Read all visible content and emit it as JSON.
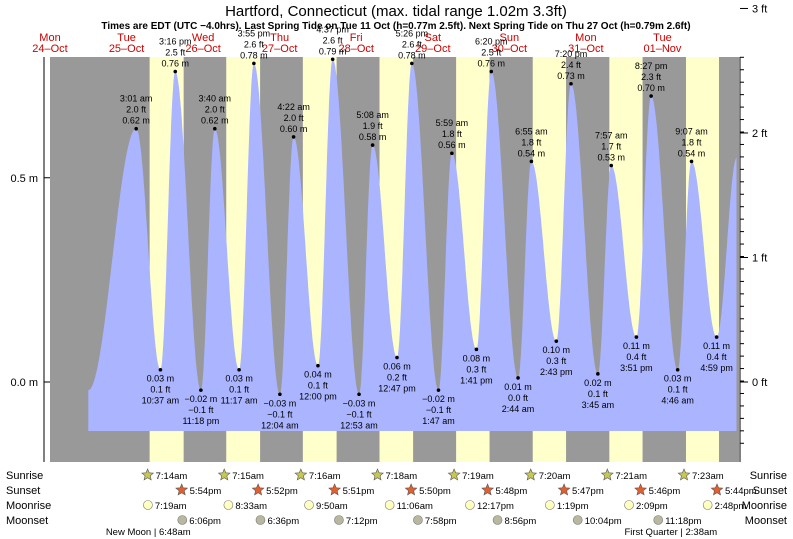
{
  "chart_data": {
    "type": "area",
    "title": "Hartford, Connecticut (max. tidal range 1.02m 3.3ft)",
    "subtitle": "Times are EDT (UTC −4.0hrs). Last Spring Tide on Tue 11 Oct (h=0.77m 2.5ft). Next Spring Tide on Thu 27 Oct (h=0.79m 2.6ft)",
    "days": [
      {
        "dow": "Mon",
        "date": "24–Oct"
      },
      {
        "dow": "Tue",
        "date": "25–Oct"
      },
      {
        "dow": "Wed",
        "date": "26–Oct"
      },
      {
        "dow": "Thu",
        "date": "27–Oct"
      },
      {
        "dow": "Fri",
        "date": "28–Oct"
      },
      {
        "dow": "Sat",
        "date": "29–Oct"
      },
      {
        "dow": "Sun",
        "date": "30–Oct"
      },
      {
        "dow": "Mon",
        "date": "31–Oct"
      },
      {
        "dow": "Tue",
        "date": "01–Nov"
      }
    ],
    "y_left_ticks": [
      {
        "v": 0.0,
        "label": "0.0 m"
      },
      {
        "v": 0.5,
        "label": "0.5 m"
      }
    ],
    "y_right_ticks": [
      {
        "v": 0.0,
        "label": "0 ft"
      },
      {
        "v": 0.3048,
        "label": "1 ft"
      },
      {
        "v": 0.6096,
        "label": "2 ft"
      },
      {
        "v": 0.9144,
        "label": "3 ft"
      }
    ],
    "ylim": [
      -0.15,
      0.93
    ],
    "x_range_days": [
      0,
      9
    ],
    "tides": [
      {
        "type": "high",
        "t": 1.1257,
        "time": "3:01 am",
        "ft": "2.0 ft",
        "m": "0.62 m",
        "v": 0.62
      },
      {
        "type": "low",
        "t": 1.4424,
        "time": "10:37 am",
        "ft": "0.1 ft",
        "m": "0.03 m",
        "v": 0.03
      },
      {
        "type": "high",
        "t": 1.6361,
        "time": "3:16 pm",
        "ft": "2.5 ft",
        "m": "0.76 m",
        "v": 0.76
      },
      {
        "type": "low",
        "t": 1.9708,
        "time": "11:18 pm",
        "ft": "−0.1 ft",
        "m": "−0.02 m",
        "v": -0.02
      },
      {
        "type": "high",
        "t": 2.1528,
        "time": "3:40 am",
        "ft": "2.0 ft",
        "m": "0.62 m",
        "v": 0.62
      },
      {
        "type": "low",
        "t": 2.4701,
        "time": "11:17 am",
        "ft": "0.1 ft",
        "m": "0.03 m",
        "v": 0.03
      },
      {
        "type": "high",
        "t": 2.6632,
        "time": "3:55 pm",
        "ft": "2.6 ft",
        "m": "0.78 m",
        "v": 0.78
      },
      {
        "type": "low",
        "t": 3.0028,
        "time": "12:04 am",
        "ft": "−0.1 ft",
        "m": "−0.03 m",
        "v": -0.03
      },
      {
        "type": "high",
        "t": 3.1819,
        "time": "4:22 am",
        "ft": "2.0 ft",
        "m": "0.60 m",
        "v": 0.6
      },
      {
        "type": "low",
        "t": 3.5,
        "time": "12:00 pm",
        "ft": "0.1 ft",
        "m": "0.04 m",
        "v": 0.04
      },
      {
        "type": "high",
        "t": 3.6924,
        "time": "4:37 pm",
        "ft": "2.6 ft",
        "m": "0.79 m",
        "v": 0.79
      },
      {
        "type": "low",
        "t": 4.0368,
        "time": "12:53 am",
        "ft": "−0.1 ft",
        "m": "−0.03 m",
        "v": -0.03
      },
      {
        "type": "high",
        "t": 4.2139,
        "time": "5:08 am",
        "ft": "1.9 ft",
        "m": "0.58 m",
        "v": 0.58
      },
      {
        "type": "low",
        "t": 4.5326,
        "time": "12:47 pm",
        "ft": "0.2 ft",
        "m": "0.06 m",
        "v": 0.06
      },
      {
        "type": "high",
        "t": 4.7264,
        "time": "5:26 pm",
        "ft": "2.6 ft",
        "m": "0.78 m",
        "v": 0.78
      },
      {
        "type": "low",
        "t": 5.0743,
        "time": "1:47 am",
        "ft": "−0.1 ft",
        "m": "−0.02 m",
        "v": -0.02
      },
      {
        "type": "high",
        "t": 5.2493,
        "time": "5:59 am",
        "ft": "1.8 ft",
        "m": "0.56 m",
        "v": 0.56
      },
      {
        "type": "low",
        "t": 5.5701,
        "time": "1:41 pm",
        "ft": "0.3 ft",
        "m": "0.08 m",
        "v": 0.08
      },
      {
        "type": "high",
        "t": 5.7639,
        "time": "6:20 pm",
        "ft": "2.5 ft",
        "m": "0.76 m",
        "v": 0.76
      },
      {
        "type": "low",
        "t": 6.1139,
        "time": "2:44 am",
        "ft": "0.0 ft",
        "m": "0.01 m",
        "v": 0.01
      },
      {
        "type": "high",
        "t": 6.2882,
        "time": "6:55 am",
        "ft": "1.8 ft",
        "m": "0.54 m",
        "v": 0.54
      },
      {
        "type": "low",
        "t": 6.6132,
        "time": "2:43 pm",
        "ft": "0.3 ft",
        "m": "0.10 m",
        "v": 0.1
      },
      {
        "type": "high",
        "t": 6.8056,
        "time": "7:20 pm",
        "ft": "2.4 ft",
        "m": "0.73 m",
        "v": 0.73
      },
      {
        "type": "low",
        "t": 7.1563,
        "time": "3:45 am",
        "ft": "0.1 ft",
        "m": "0.02 m",
        "v": 0.02
      },
      {
        "type": "high",
        "t": 7.3313,
        "time": "7:57 am",
        "ft": "1.7 ft",
        "m": "0.53 m",
        "v": 0.53
      },
      {
        "type": "low",
        "t": 7.66,
        "time": "3:51 pm",
        "ft": "0.4 ft",
        "m": "0.11 m",
        "v": 0.11
      },
      {
        "type": "high",
        "t": 7.8521,
        "time": "8:27 pm",
        "ft": "2.3 ft",
        "m": "0.70 m",
        "v": 0.7
      },
      {
        "type": "low",
        "t": 8.1986,
        "time": "4:46 am",
        "ft": "0.1 ft",
        "m": "0.03 m",
        "v": 0.03
      },
      {
        "type": "high",
        "t": 8.3799,
        "time": "9:07 am",
        "ft": "1.8 ft",
        "m": "0.54 m",
        "v": 0.54
      },
      {
        "type": "low",
        "t": 8.7076,
        "time": "4:59 pm",
        "ft": "0.4 ft",
        "m": "0.11 m",
        "v": 0.11
      }
    ],
    "sun": [
      {
        "rise_t": 1.3014,
        "rise": "7:14am",
        "set_t": 1.7458,
        "set": "5:54pm"
      },
      {
        "rise_t": 2.3021,
        "rise": "7:15am",
        "set_t": 2.7444,
        "set": "5:52pm"
      },
      {
        "rise_t": 3.3028,
        "rise": "7:16am",
        "set_t": 3.7438,
        "set": "5:51pm"
      },
      {
        "rise_t": 4.3042,
        "rise": "7:18am",
        "set_t": 4.7431,
        "set": "5:50pm"
      },
      {
        "rise_t": 5.3049,
        "rise": "7:19am",
        "set_t": 5.7417,
        "set": "5:48pm"
      },
      {
        "rise_t": 6.3056,
        "rise": "7:20am",
        "set_t": 6.741,
        "set": "5:47pm"
      },
      {
        "rise_t": 7.3063,
        "rise": "7:21am",
        "set_t": 7.7403,
        "set": "5:46pm"
      },
      {
        "rise_t": 8.3076,
        "rise": "7:23am",
        "set_t": 8.7389,
        "set": "5:44pm"
      }
    ],
    "moonrise": [
      {
        "t": 1.3049,
        "label": "7:19am"
      },
      {
        "t": 2.3563,
        "label": "8:33am"
      },
      {
        "t": 3.4097,
        "label": "9:50am"
      },
      {
        "t": 4.4625,
        "label": "11:06am"
      },
      {
        "t": 5.5118,
        "label": "12:17pm"
      },
      {
        "t": 6.5549,
        "label": "1:19pm"
      },
      {
        "t": 7.5896,
        "label": "2:09pm"
      },
      {
        "t": 8.6167,
        "label": "2:48pm"
      }
    ],
    "moonset": [
      {
        "t": 1.7542,
        "label": "6:06pm"
      },
      {
        "t": 2.775,
        "label": "6:36pm"
      },
      {
        "t": 3.8,
        "label": "7:12pm"
      },
      {
        "t": 4.8319,
        "label": "7:58pm"
      },
      {
        "t": 5.8722,
        "label": "8:56pm"
      },
      {
        "t": 6.9194,
        "label": "10:04pm"
      },
      {
        "t": 7.9708,
        "label": "11:18pm"
      }
    ],
    "moon_notes": [
      {
        "t": 1.2833,
        "label": "New Moon | 6:48am"
      },
      {
        "t": 8.1097,
        "label": "First Quarter | 2:38am"
      }
    ],
    "row_labels": [
      "Sunrise",
      "Sunset",
      "Moonrise",
      "Moonset"
    ],
    "colors": {
      "night": "#999999",
      "day": "#ffffcc",
      "water": "#aab4ff",
      "sun_star": "#c8c850",
      "set_star": "#e06030",
      "moonrise": "#ffffc0",
      "moonset": "#b8b8a0"
    }
  }
}
